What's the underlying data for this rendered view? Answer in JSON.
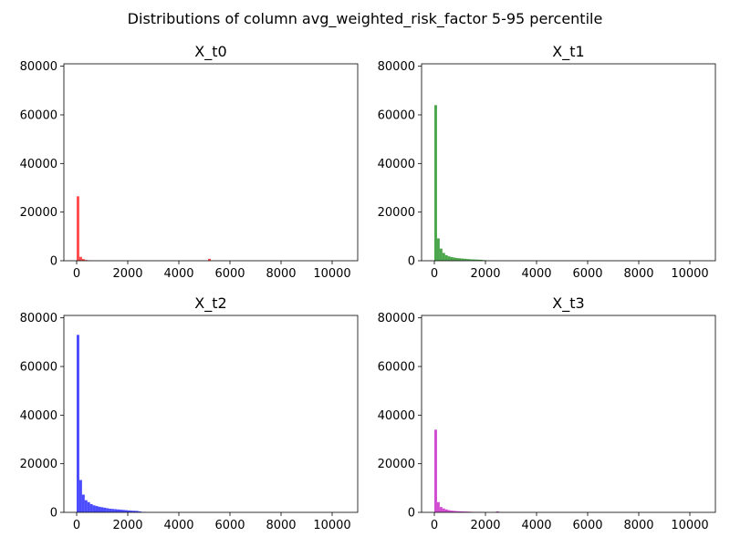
{
  "figure": {
    "suptitle": "Distributions of column avg_weighted_risk_factor 5-95 percentile"
  },
  "chart_data": [
    {
      "type": "bar",
      "title": "X_t0",
      "color": "#ff0000",
      "xlim": [
        -500,
        11000
      ],
      "ylim": [
        0,
        81000
      ],
      "xticks": [
        0,
        2000,
        4000,
        6000,
        8000,
        10000
      ],
      "yticks": [
        0,
        20000,
        40000,
        60000,
        80000
      ],
      "bin_width": 105,
      "bins": [
        {
          "x": 0,
          "count": 26500
        },
        {
          "x": 105,
          "count": 1600
        },
        {
          "x": 210,
          "count": 700
        },
        {
          "x": 315,
          "count": 300
        },
        {
          "x": 420,
          "count": 150
        },
        {
          "x": 525,
          "count": 80
        },
        {
          "x": 5145,
          "count": 800
        }
      ]
    },
    {
      "type": "bar",
      "title": "X_t1",
      "color": "#008000",
      "xlim": [
        -500,
        11000
      ],
      "ylim": [
        0,
        81000
      ],
      "xticks": [
        0,
        2000,
        4000,
        6000,
        8000,
        10000
      ],
      "yticks": [
        0,
        20000,
        40000,
        60000,
        80000
      ],
      "bin_width": 105,
      "bins": [
        {
          "x": 0,
          "count": 64000
        },
        {
          "x": 105,
          "count": 9200
        },
        {
          "x": 210,
          "count": 5000
        },
        {
          "x": 315,
          "count": 3200
        },
        {
          "x": 420,
          "count": 2300
        },
        {
          "x": 525,
          "count": 1800
        },
        {
          "x": 630,
          "count": 1500
        },
        {
          "x": 735,
          "count": 1300
        },
        {
          "x": 840,
          "count": 1100
        },
        {
          "x": 945,
          "count": 1000
        },
        {
          "x": 1050,
          "count": 900
        },
        {
          "x": 1155,
          "count": 800
        },
        {
          "x": 1260,
          "count": 700
        },
        {
          "x": 1365,
          "count": 600
        },
        {
          "x": 1470,
          "count": 550
        },
        {
          "x": 1575,
          "count": 500
        },
        {
          "x": 1680,
          "count": 450
        },
        {
          "x": 1785,
          "count": 400
        },
        {
          "x": 1890,
          "count": 250
        },
        {
          "x": 1995,
          "count": 150
        },
        {
          "x": 2100,
          "count": 100
        },
        {
          "x": 2205,
          "count": 80
        },
        {
          "x": 2310,
          "count": 60
        }
      ]
    },
    {
      "type": "bar",
      "title": "X_t2",
      "color": "#0000ff",
      "xlim": [
        -500,
        11000
      ],
      "ylim": [
        0,
        81000
      ],
      "xticks": [
        0,
        2000,
        4000,
        6000,
        8000,
        10000
      ],
      "yticks": [
        0,
        20000,
        40000,
        60000,
        80000
      ],
      "bin_width": 105,
      "bins": [
        {
          "x": 0,
          "count": 73000
        },
        {
          "x": 105,
          "count": 13300
        },
        {
          "x": 210,
          "count": 7300
        },
        {
          "x": 315,
          "count": 5000
        },
        {
          "x": 420,
          "count": 4200
        },
        {
          "x": 525,
          "count": 3400
        },
        {
          "x": 630,
          "count": 2900
        },
        {
          "x": 735,
          "count": 2600
        },
        {
          "x": 840,
          "count": 2300
        },
        {
          "x": 945,
          "count": 2100
        },
        {
          "x": 1050,
          "count": 1900
        },
        {
          "x": 1155,
          "count": 1700
        },
        {
          "x": 1260,
          "count": 1500
        },
        {
          "x": 1365,
          "count": 1400
        },
        {
          "x": 1470,
          "count": 1300
        },
        {
          "x": 1575,
          "count": 1200
        },
        {
          "x": 1680,
          "count": 1100
        },
        {
          "x": 1785,
          "count": 1000
        },
        {
          "x": 1890,
          "count": 900
        },
        {
          "x": 1995,
          "count": 800
        },
        {
          "x": 2100,
          "count": 700
        },
        {
          "x": 2205,
          "count": 650
        },
        {
          "x": 2310,
          "count": 600
        },
        {
          "x": 2415,
          "count": 400
        },
        {
          "x": 2520,
          "count": 200
        },
        {
          "x": 2625,
          "count": 120
        }
      ]
    },
    {
      "type": "bar",
      "title": "X_t3",
      "color": "#bf00bf",
      "xlim": [
        -500,
        11000
      ],
      "ylim": [
        0,
        81000
      ],
      "xticks": [
        0,
        2000,
        4000,
        6000,
        8000,
        10000
      ],
      "yticks": [
        0,
        20000,
        40000,
        60000,
        80000
      ],
      "bin_width": 105,
      "bins": [
        {
          "x": 0,
          "count": 34000
        },
        {
          "x": 105,
          "count": 4200
        },
        {
          "x": 210,
          "count": 2200
        },
        {
          "x": 315,
          "count": 1600
        },
        {
          "x": 420,
          "count": 1200
        },
        {
          "x": 525,
          "count": 900
        },
        {
          "x": 630,
          "count": 700
        },
        {
          "x": 735,
          "count": 600
        },
        {
          "x": 840,
          "count": 500
        },
        {
          "x": 945,
          "count": 450
        },
        {
          "x": 1050,
          "count": 400
        },
        {
          "x": 1155,
          "count": 350
        },
        {
          "x": 1260,
          "count": 300
        },
        {
          "x": 1365,
          "count": 250
        },
        {
          "x": 1470,
          "count": 200
        },
        {
          "x": 1575,
          "count": 180
        },
        {
          "x": 1680,
          "count": 150
        },
        {
          "x": 1785,
          "count": 120
        },
        {
          "x": 1890,
          "count": 100
        },
        {
          "x": 2415,
          "count": 400
        },
        {
          "x": 2520,
          "count": 150
        }
      ]
    }
  ]
}
